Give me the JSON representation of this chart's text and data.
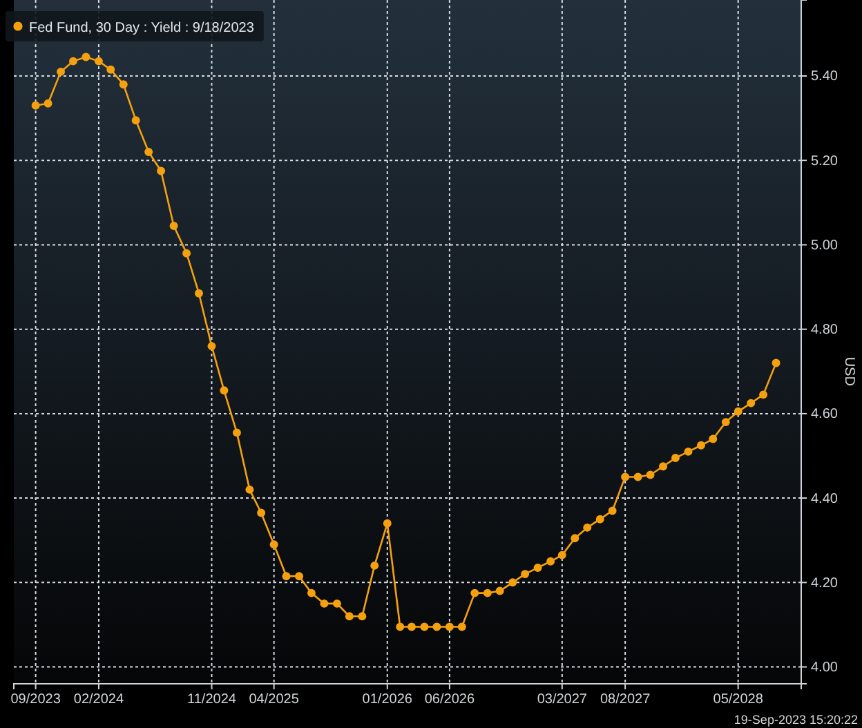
{
  "chart_data": {
    "type": "line",
    "ylabel": "USD",
    "x": [
      "2023-09",
      "2023-10",
      "2023-11",
      "2023-12",
      "2024-01",
      "2024-02",
      "2024-03",
      "2024-04",
      "2024-05",
      "2024-06",
      "2024-07",
      "2024-08",
      "2024-09",
      "2024-10",
      "2024-11",
      "2024-12",
      "2025-01",
      "2025-02",
      "2025-03",
      "2025-04",
      "2025-05",
      "2025-06",
      "2025-07",
      "2025-08",
      "2025-09",
      "2025-10",
      "2025-11",
      "2025-12",
      "2026-01",
      "2026-02",
      "2026-03",
      "2026-04",
      "2026-05",
      "2026-06",
      "2026-07",
      "2026-08",
      "2026-09",
      "2026-10",
      "2026-11",
      "2026-12",
      "2027-01",
      "2027-02",
      "2027-03",
      "2027-04",
      "2027-05",
      "2027-06",
      "2027-07",
      "2027-08",
      "2027-09",
      "2027-10",
      "2027-11",
      "2027-12",
      "2028-01",
      "2028-02",
      "2028-03",
      "2028-04",
      "2028-05",
      "2028-06",
      "2028-07",
      "2028-08"
    ],
    "series": [
      {
        "name": "Fed Fund, 30 Day : Yield : 9/18/2023",
        "color": "#f5a10f",
        "values": [
          5.33,
          5.335,
          5.41,
          5.435,
          5.445,
          5.435,
          5.415,
          5.38,
          5.295,
          5.22,
          5.175,
          5.045,
          4.98,
          4.885,
          4.76,
          4.655,
          4.555,
          4.42,
          4.365,
          4.29,
          4.215,
          4.215,
          4.175,
          4.15,
          4.15,
          4.12,
          4.12,
          4.24,
          4.34,
          4.095,
          4.095,
          4.095,
          4.095,
          4.095,
          4.095,
          4.175,
          4.175,
          4.18,
          4.2,
          4.22,
          4.235,
          4.25,
          4.265,
          4.305,
          4.33,
          4.35,
          4.37,
          4.45,
          4.45,
          4.455,
          4.475,
          4.495,
          4.51,
          4.525,
          4.54,
          4.58,
          4.605,
          4.625,
          4.645,
          4.72
        ]
      }
    ],
    "xlim": [
      "2023-07-10",
      "2028-10-01"
    ],
    "xticks": [
      {
        "value": "2023-09",
        "label": "09/2023"
      },
      {
        "value": "2024-02",
        "label": "02/2024"
      },
      {
        "value": "2024-11",
        "label": "11/2024"
      },
      {
        "value": "2025-04",
        "label": "04/2025"
      },
      {
        "value": "2026-01",
        "label": "01/2026"
      },
      {
        "value": "2026-06",
        "label": "06/2026"
      },
      {
        "value": "2027-03",
        "label": "03/2027"
      },
      {
        "value": "2027-08",
        "label": "08/2027"
      },
      {
        "value": "2028-05",
        "label": "05/2028"
      }
    ],
    "ylim": [
      3.96,
      5.58
    ],
    "yticks": [
      {
        "value": 4,
        "label": "4.00"
      },
      {
        "value": 4.2,
        "label": "4.20"
      },
      {
        "value": 4.4,
        "label": "4.40"
      },
      {
        "value": 4.6,
        "label": "4.60"
      },
      {
        "value": 4.8,
        "label": "4.80"
      },
      {
        "value": 5,
        "label": "5.00"
      },
      {
        "value": 5.2,
        "label": "5.20"
      },
      {
        "value": 5.4,
        "label": "5.40"
      }
    ],
    "grid": true,
    "legend": "top left",
    "marker": "circle",
    "line_style": "solid",
    "annotations": [
      "19-Sep-2023 15:20:22"
    ]
  }
}
